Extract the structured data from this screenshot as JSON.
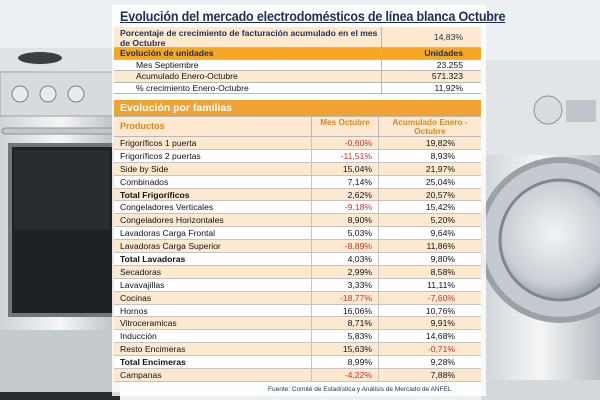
{
  "title": "Evolución del mercado electrodomésticos de línea blanca Octubre",
  "top": {
    "pct_label": "Porcentaje de crecimiento de facturación acumulado en el mes de Octubre",
    "pct_value": "14,83%",
    "units_title": "Evolución de unidades",
    "units_col": "Unidades",
    "rows": [
      {
        "label": "Mes Septiembre",
        "value": "23.255"
      },
      {
        "label": "Acumulado Enero-Octubre",
        "value": "571.323"
      },
      {
        "label": "% crecimiento Enero-Octubre",
        "value": "11,92%"
      }
    ]
  },
  "families": {
    "title": "Evolución por familias",
    "col_product": "Productos",
    "col_month": "Mes Octubre",
    "col_acc": "Acumulado Enero - Octubre",
    "rows": [
      {
        "p": "Frigoríficos 1 puerta",
        "m": "-0,60%",
        "a": "19,82%"
      },
      {
        "p": "Frigoríficos 2 puertas",
        "m": "-11,51%",
        "a": "8,93%"
      },
      {
        "p": "Side by Side",
        "m": "15,04%",
        "a": "21,97%"
      },
      {
        "p": "Combinados",
        "m": "7,14%",
        "a": "25,04%"
      },
      {
        "p": "Total Frigoríficos",
        "m": "2,62%",
        "a": "20,57%"
      },
      {
        "p": "Congeladores Verticales",
        "m": "-9,18%",
        "a": "15,42%"
      },
      {
        "p": "Congeladores Horizontales",
        "m": "8,90%",
        "a": "5,20%"
      },
      {
        "p": "Lavadoras Carga Frontal",
        "m": "5,03%",
        "a": "9,64%"
      },
      {
        "p": "Lavadoras Carga Superior",
        "m": "-8,89%",
        "a": "11,86%"
      },
      {
        "p": "Total Lavadoras",
        "m": "4,03%",
        "a": "9,80%"
      },
      {
        "p": "Secadoras",
        "m": "2,99%",
        "a": "8,58%"
      },
      {
        "p": "Lavavajillas",
        "m": "3,33%",
        "a": "11,11%"
      },
      {
        "p": "Cocinas",
        "m": "-18,77%",
        "a": "-7,60%"
      },
      {
        "p": "Hornos",
        "m": "16,06%",
        "a": "10,76%"
      },
      {
        "p": "Vitroceramicas",
        "m": "8,71%",
        "a": "9,91%"
      },
      {
        "p": "Inducción",
        "m": "5,83%",
        "a": "14,68%"
      },
      {
        "p": "Resto Encimeras",
        "m": "15,63%",
        "a": "-0,71%"
      },
      {
        "p": "Total Encimeras",
        "m": "8,99%",
        "a": "9,28%"
      },
      {
        "p": "Campanas",
        "m": "-4,22%",
        "a": "7,88%"
      }
    ]
  },
  "source": "Fuente: Comité de Estadística y Análisis de Mercado de ANFEL"
}
